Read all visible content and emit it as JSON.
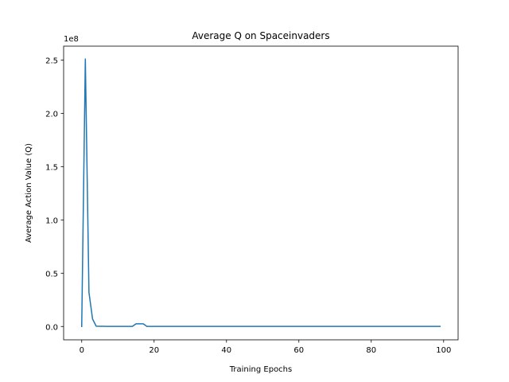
{
  "chart_data": {
    "type": "line",
    "title": "Average Q on Spaceinvaders",
    "xlabel": "Training Epochs",
    "ylabel": "Average Action Value (Q)",
    "y_offset_label": "1e8",
    "xlim": [
      -5,
      104
    ],
    "ylim": [
      -12500000,
      263000000
    ],
    "x_ticks": [
      0,
      20,
      40,
      60,
      80,
      100
    ],
    "x_tick_labels": [
      "0",
      "20",
      "40",
      "60",
      "80",
      "100"
    ],
    "y_ticks": [
      0,
      50000000,
      100000000,
      150000000,
      200000000,
      250000000
    ],
    "y_tick_labels": [
      "0.0",
      "0.5",
      "1.0",
      "1.5",
      "2.0",
      "2.5"
    ],
    "grid": false,
    "series": [
      {
        "color": "#1f77b4",
        "x": [
          0,
          1,
          2,
          3,
          4,
          5,
          6,
          7,
          8,
          9,
          10,
          11,
          12,
          13,
          14,
          15,
          16,
          17,
          18,
          19,
          20,
          25,
          30,
          35,
          40,
          45,
          50,
          55,
          60,
          65,
          70,
          75,
          80,
          85,
          90,
          95,
          99
        ],
        "y": [
          0,
          251000000,
          32000000,
          7000000,
          300000,
          200000,
          150000,
          120000,
          100000,
          100000,
          100000,
          100000,
          100000,
          100000,
          100000,
          2500000,
          2500000,
          2500000,
          100000,
          80000,
          80000,
          80000,
          80000,
          80000,
          80000,
          80000,
          80000,
          80000,
          80000,
          80000,
          80000,
          80000,
          80000,
          80000,
          80000,
          80000,
          80000
        ]
      }
    ]
  }
}
